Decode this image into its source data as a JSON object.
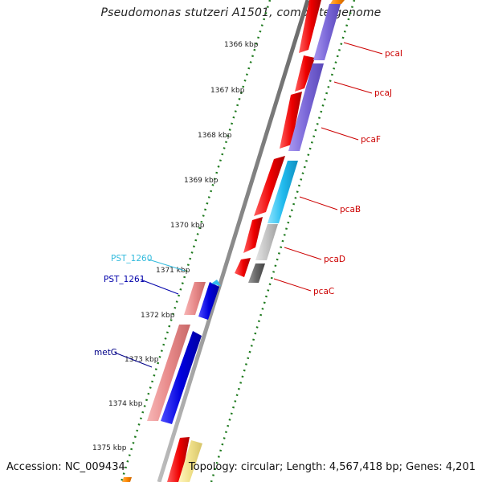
{
  "title": "Pseudomonas stutzeri A1501, complete genome",
  "footer": {
    "accession": "Accession: NC_009434",
    "summary": "Topology: circular; Length: 4,567,418 bp; Genes: 4,201"
  },
  "scale": {
    "tick_labels": [
      "1366 kbp",
      "1367 kbp",
      "1368 kbp",
      "1369 kbp",
      "1370 kbp",
      "1371 kbp",
      "1372 kbp",
      "1373 kbp",
      "1374 kbp",
      "1375 kbp"
    ]
  },
  "gene_labels": {
    "pcaI": "pcaI",
    "pcaJ": "pcaJ",
    "pcaF": "pcaF",
    "pcaB": "pcaB",
    "pcaD": "pcaD",
    "pcaC": "pcaC",
    "PST_1260": "PST_1260",
    "PST_1261": "PST_1261",
    "metG": "metG"
  },
  "colors": {
    "backbone": "#8a8a8a",
    "tick_green": "#1e7a1e",
    "cds_red": "#ee0000",
    "purple": "#7b68d8",
    "cyan": "#22bbee",
    "light_gray": "#c4c4c4",
    "dark_gray": "#666666",
    "pink": "#e88a8a",
    "blue": "#0000dd",
    "yellow": "#f0e08a",
    "orange": "#ff8800",
    "label_red": "#cc0000",
    "label_blue": "#0000aa",
    "label_navy": "#000088",
    "label_cyan": "#33bbdd"
  }
}
